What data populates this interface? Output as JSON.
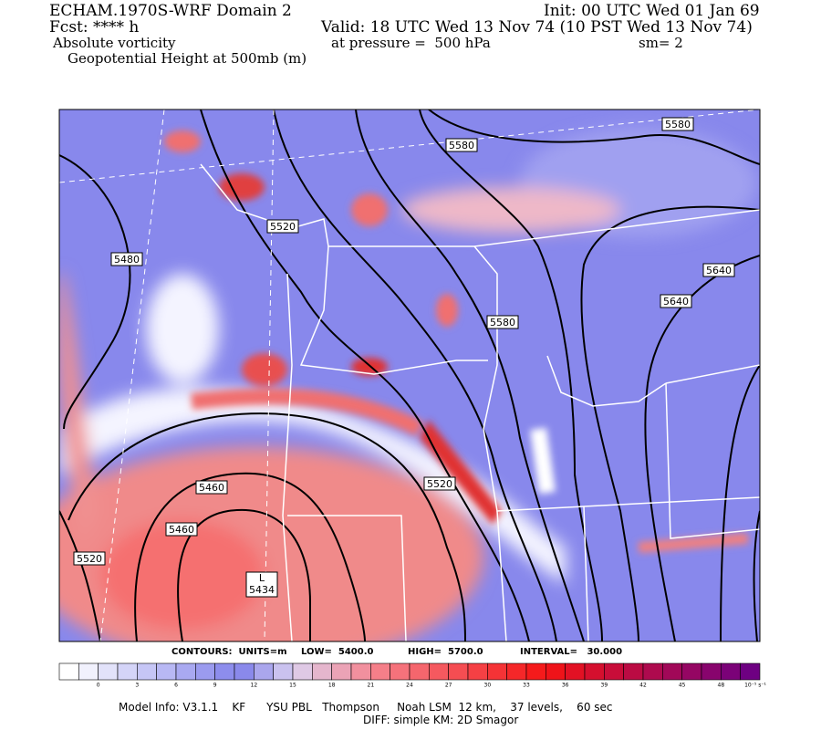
{
  "header": {
    "model": "ECHAM.1970S-WRF Domain 2",
    "init": "Init: 00 UTC Wed 01 Jan 69",
    "fcst": "Fcst: **** h",
    "valid": "Valid: 18 UTC Wed 13 Nov 74 (10 PST Wed 13 Nov 74)",
    "field": "Absolute vorticity",
    "pressure": "at pressure =  500 hPa",
    "smooth": "sm= 2",
    "contour_field": "Geopotential Height at 500mb (m)"
  },
  "map": {
    "contour_labels": [
      "5580",
      "5580",
      "5520",
      "5480",
      "5640",
      "5640",
      "5580",
      "5460",
      "5520",
      "5460",
      "5520"
    ],
    "low_marker": "L",
    "low_value": "5434"
  },
  "contour_info": {
    "units": "CONTOURS:  UNITS=m",
    "low": "LOW=  5400.0",
    "high": "HIGH=  5700.0",
    "interval": "INTERVAL=   30.000"
  },
  "colorbar": {
    "labels": [
      0,
      3,
      6,
      9,
      12,
      15,
      18,
      21,
      24,
      27,
      30,
      33,
      36,
      39,
      42,
      45,
      48
    ],
    "unit": "10⁻⁵ s⁻¹"
  },
  "footer": {
    "line1": "Model Info: V3.1.1    KF      YSU PBL   Thompson     Noah LSM  12 km,    37 levels,    60 sec",
    "line2": "DIFF: simple KM: 2D Smagor"
  }
}
